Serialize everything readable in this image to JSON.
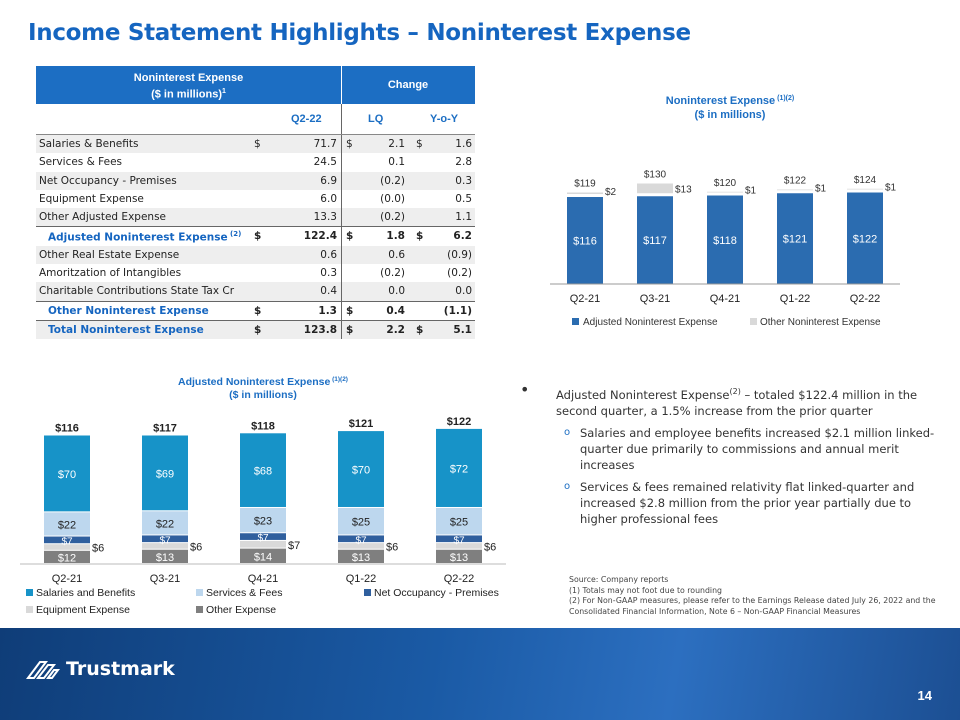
{
  "title": "Income Statement Highlights – Noninterest Expense",
  "table": {
    "header_line1": "Noninterest Expense",
    "header_line2": "($ in millions)",
    "header_sup": "1",
    "change_label": "Change",
    "col_q": "Q2-22",
    "col_lq": "LQ",
    "col_yoy": "Y-o-Y",
    "rows": [
      {
        "label": "Salaries & Benefits",
        "d1": "$",
        "v1": "71.7",
        "d2": "$",
        "v2": "2.1",
        "d3": "$",
        "v3": "1.6"
      },
      {
        "label": "Services & Fees",
        "d1": "",
        "v1": "24.5",
        "d2": "",
        "v2": "0.1",
        "d3": "",
        "v3": "2.8"
      },
      {
        "label": "Net Occupancy - Premises",
        "d1": "",
        "v1": "6.9",
        "d2": "",
        "v2": "(0.2)",
        "d3": "",
        "v3": "0.3"
      },
      {
        "label": "Equipment Expense",
        "d1": "",
        "v1": "6.0",
        "d2": "",
        "v2": "(0.0)",
        "d3": "",
        "v3": "0.5"
      },
      {
        "label": "Other Adjusted Expense",
        "d1": "",
        "v1": "13.3",
        "d2": "",
        "v2": "(0.2)",
        "d3": "",
        "v3": "1.1"
      },
      {
        "label": "Adjusted Noninterest Expense",
        "sup": "(2)",
        "d1": "$",
        "v1": "122.4",
        "d2": "$",
        "v2": "1.8",
        "d3": "$",
        "v3": "6.2"
      },
      {
        "label": "Other Real Estate Expense",
        "d1": "",
        "v1": "0.6",
        "d2": "",
        "v2": "0.6",
        "d3": "",
        "v3": "(0.9)"
      },
      {
        "label": "Amoritzation of Intangibles",
        "d1": "",
        "v1": "0.3",
        "d2": "",
        "v2": "(0.2)",
        "d3": "",
        "v3": "(0.2)"
      },
      {
        "label": "Charitable Contributions State Tax Cr",
        "d1": "",
        "v1": "0.4",
        "d2": "",
        "v2": "0.0",
        "d3": "",
        "v3": "0.0"
      },
      {
        "label": "Other Noninterest Expense",
        "d1": "$",
        "v1": "1.3",
        "d2": "$",
        "v2": "0.4",
        "d3": "",
        "v3": "(1.1)"
      },
      {
        "label": "Total Noninterest Expense",
        "d1": "$",
        "v1": "123.8",
        "d2": "$",
        "v2": "2.2",
        "d3": "$",
        "v3": "5.1"
      }
    ]
  },
  "chart_data": [
    {
      "type": "bar",
      "stacked": true,
      "title": "Noninterest Expense",
      "title_sup": "(1)(2)",
      "subtitle": "($ in millions)",
      "categories": [
        "Q2-21",
        "Q3-21",
        "Q4-21",
        "Q1-22",
        "Q2-22"
      ],
      "series": [
        {
          "name": "Adjusted Noninterest Expense",
          "values": [
            116,
            117,
            118,
            121,
            122
          ],
          "color": "#2b6cb0",
          "labels": [
            "$116",
            "$117",
            "$118",
            "$121",
            "$122"
          ]
        },
        {
          "name": "Other Noninterest Expense",
          "values": [
            2,
            13,
            1,
            1,
            1
          ],
          "color": "#d9d9d9",
          "labels": [
            "$2",
            "$13",
            "$1",
            "$1",
            "$1"
          ]
        }
      ],
      "totals": [
        "$119",
        "$130",
        "$120",
        "$122",
        "$124"
      ],
      "legend": "bottom"
    },
    {
      "type": "bar",
      "stacked": true,
      "title": "Adjusted Noninterest Expense",
      "title_sup": "(1)(2)",
      "subtitle": "($ in millions)",
      "categories": [
        "Q2-21",
        "Q3-21",
        "Q4-21",
        "Q1-22",
        "Q2-22"
      ],
      "series": [
        {
          "name": "Other Expense",
          "values": [
            12,
            13,
            14,
            13,
            13
          ],
          "color": "#7f7f7f",
          "labels": [
            "$12",
            "$13",
            "$14",
            "$13",
            "$13"
          ]
        },
        {
          "name": "Equipment Expense",
          "values": [
            6,
            6,
            7,
            6,
            6
          ],
          "color": "#d9d9d9",
          "labels": [
            "$6",
            "$6",
            "$7",
            "$6",
            "$6"
          ]
        },
        {
          "name": "Net Occupancy - Premises",
          "values": [
            7,
            7,
            7,
            7,
            7
          ],
          "color": "#2f5f9e",
          "labels": [
            "$7",
            "$7",
            "$7",
            "$7",
            "$7"
          ]
        },
        {
          "name": "Services & Fees",
          "values": [
            22,
            22,
            23,
            25,
            25
          ],
          "color": "#bdd7ee",
          "labels": [
            "$22",
            "$22",
            "$23",
            "$25",
            "$25"
          ]
        },
        {
          "name": "Salaries and Benefits",
          "values": [
            70,
            69,
            68,
            70,
            72
          ],
          "color": "#1793c8",
          "labels": [
            "$70",
            "$69",
            "$68",
            "$70",
            "$72"
          ]
        }
      ],
      "totals": [
        "$116",
        "$117",
        "$118",
        "$121",
        "$122"
      ],
      "legend": "bottom"
    }
  ],
  "bullets": {
    "main_prefix": "Adjusted Noninterest Expense",
    "main_sup": "(2)",
    "main_text": " – totaled $122.4 million in the second quarter, a 1.5% increase from the prior quarter",
    "sub": [
      "Salaries and employee benefits increased $2.1 million linked-quarter due primarily to commissions and annual merit increases",
      "Services & fees remained relativity flat linked-quarter and increased $2.8 million from the prior year partially due to higher professional fees"
    ]
  },
  "source": [
    "Source: Company reports",
    "(1) Totals may not foot due to rounding",
    "(2) For Non-GAAP measures, please refer to the Earnings Release dated July 26, 2022 and the Consolidated Financial Information, Note 6 – Non-GAAP Financial Measures"
  ],
  "footer": {
    "logo_text": "Trustmark",
    "page_number": "14"
  }
}
